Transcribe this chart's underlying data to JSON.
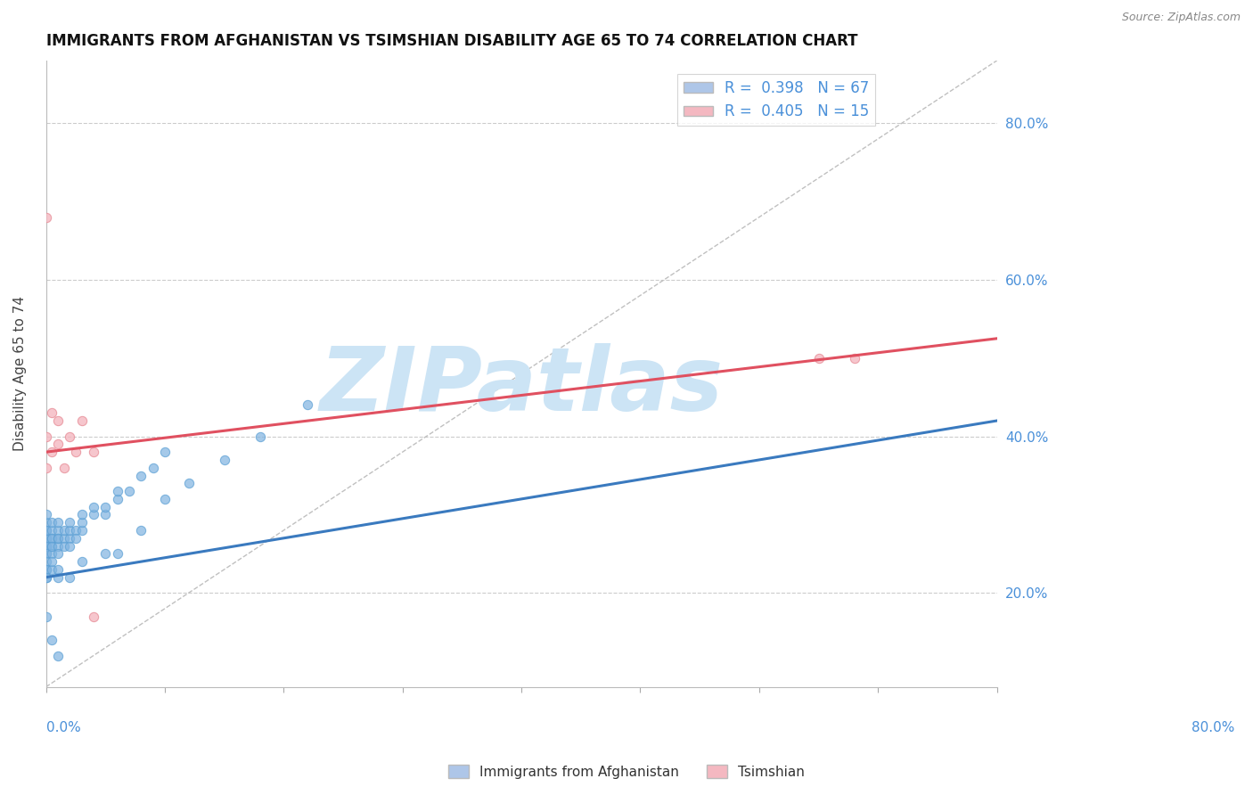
{
  "title": "IMMIGRANTS FROM AFGHANISTAN VS TSIMSHIAN DISABILITY AGE 65 TO 74 CORRELATION CHART",
  "source_text": "Source: ZipAtlas.com",
  "ylabel": "Disability Age 65 to 74",
  "y_ticks": [
    0.2,
    0.4,
    0.6,
    0.8
  ],
  "y_tick_labels": [
    "20.0%",
    "40.0%",
    "60.0%",
    "80.0%"
  ],
  "xlim": [
    0.0,
    0.8
  ],
  "ylim": [
    0.08,
    0.88
  ],
  "legend_entries": [
    {
      "label": "R =  0.398   N = 67",
      "color": "#aec6e8"
    },
    {
      "label": "R =  0.405   N = 15",
      "color": "#f4b8c1"
    }
  ],
  "scatter_blue": {
    "x": [
      0.0,
      0.0,
      0.0,
      0.0,
      0.0,
      0.0,
      0.0,
      0.0,
      0.0,
      0.0,
      0.005,
      0.005,
      0.005,
      0.005,
      0.005,
      0.005,
      0.005,
      0.01,
      0.01,
      0.01,
      0.01,
      0.01,
      0.01,
      0.015,
      0.015,
      0.015,
      0.02,
      0.02,
      0.02,
      0.02,
      0.025,
      0.025,
      0.03,
      0.03,
      0.03,
      0.04,
      0.04,
      0.05,
      0.05,
      0.06,
      0.06,
      0.07,
      0.08,
      0.09,
      0.1,
      0.0,
      0.0,
      0.0,
      0.0,
      0.0,
      0.005,
      0.005,
      0.01,
      0.01,
      0.02,
      0.03,
      0.05,
      0.06,
      0.08,
      0.1,
      0.12,
      0.15,
      0.18,
      0.22,
      0.0,
      0.005,
      0.01
    ],
    "y": [
      0.27,
      0.28,
      0.26,
      0.29,
      0.25,
      0.3,
      0.27,
      0.28,
      0.26,
      0.25,
      0.27,
      0.28,
      0.26,
      0.29,
      0.25,
      0.27,
      0.26,
      0.27,
      0.28,
      0.26,
      0.25,
      0.29,
      0.27,
      0.27,
      0.26,
      0.28,
      0.27,
      0.28,
      0.26,
      0.29,
      0.28,
      0.27,
      0.28,
      0.29,
      0.3,
      0.3,
      0.31,
      0.3,
      0.31,
      0.32,
      0.33,
      0.33,
      0.35,
      0.36,
      0.38,
      0.23,
      0.24,
      0.22,
      0.23,
      0.22,
      0.23,
      0.24,
      0.22,
      0.23,
      0.22,
      0.24,
      0.25,
      0.25,
      0.28,
      0.32,
      0.34,
      0.37,
      0.4,
      0.44,
      0.17,
      0.14,
      0.12
    ],
    "color": "#7fb3e0",
    "edgecolor": "#5a9fd4",
    "size": 55
  },
  "scatter_pink": {
    "x": [
      0.0,
      0.0,
      0.0,
      0.005,
      0.005,
      0.01,
      0.01,
      0.015,
      0.02,
      0.025,
      0.03,
      0.04,
      0.04,
      0.65,
      0.68
    ],
    "y": [
      0.68,
      0.4,
      0.36,
      0.38,
      0.43,
      0.39,
      0.42,
      0.36,
      0.4,
      0.38,
      0.42,
      0.38,
      0.17,
      0.5,
      0.5
    ],
    "color": "#f4b8c1",
    "edgecolor": "#e8909a",
    "size": 55
  },
  "trendline_blue": {
    "x": [
      0.0,
      0.8
    ],
    "y": [
      0.22,
      0.42
    ],
    "color": "#3a7abf",
    "linewidth": 2.2
  },
  "trendline_pink": {
    "x": [
      0.0,
      0.8
    ],
    "y": [
      0.38,
      0.525
    ],
    "color": "#e05060",
    "linewidth": 2.2
  },
  "ref_line": {
    "x": [
      0.0,
      0.8
    ],
    "y": [
      0.08,
      0.88
    ],
    "color": "#c0c0c0",
    "linewidth": 1.0,
    "linestyle": "--"
  },
  "watermark": "ZIPatlas",
  "watermark_color": "#cce4f5",
  "background_color": "#ffffff",
  "grid_color": "#cccccc",
  "grid_linestyle": "--",
  "title_fontsize": 12,
  "axis_label_fontsize": 11,
  "tick_fontsize": 11,
  "right_tick_color": "#4a90d9"
}
